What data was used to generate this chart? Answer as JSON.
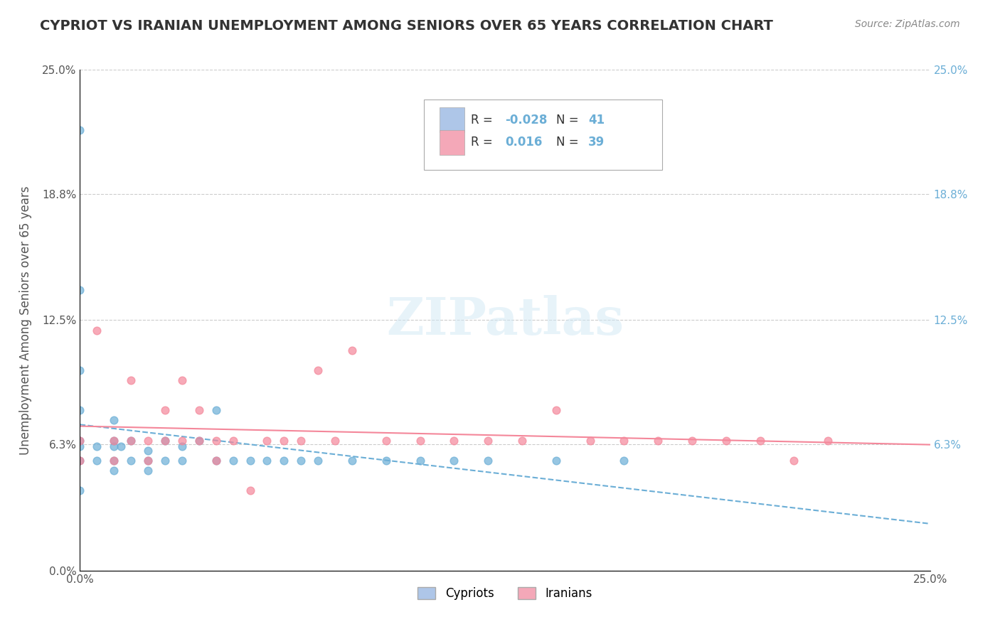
{
  "title": "CYPRIOT VS IRANIAN UNEMPLOYMENT AMONG SENIORS OVER 65 YEARS CORRELATION CHART",
  "source": "Source: ZipAtlas.com",
  "xlabel": "",
  "ylabel": "Unemployment Among Seniors over 65 years",
  "watermark": "ZIPatlas",
  "xlim": [
    0.0,
    0.25
  ],
  "ylim": [
    0.0,
    0.25
  ],
  "xtick_labels": [
    "0.0%",
    "25.0%"
  ],
  "ytick_labels": [
    "0.0%",
    "6.3%",
    "12.5%",
    "18.8%",
    "25.0%"
  ],
  "ytick_values": [
    0.0,
    0.063,
    0.125,
    0.188,
    0.25
  ],
  "right_ytick_labels": [
    "25.0%",
    "18.8%",
    "12.5%",
    "6.3%"
  ],
  "right_ytick_values": [
    0.25,
    0.188,
    0.125,
    0.063
  ],
  "legend_color_cypriot": "#aec6e8",
  "legend_color_iranian": "#f4a8b8",
  "cypriot_color": "#6baed6",
  "iranian_color": "#f4879a",
  "cypriot_R": -0.028,
  "cypriot_N": 41,
  "iranian_R": 0.016,
  "iranian_N": 39,
  "background_color": "#ffffff",
  "grid_color": "#cccccc",
  "title_color": "#333333",
  "axis_label_color": "#555555",
  "right_axis_color": "#6baed6",
  "cypriot_scatter_x": [
    0.0,
    0.0,
    0.0,
    0.0,
    0.0,
    0.0,
    0.0,
    0.0,
    0.005,
    0.005,
    0.01,
    0.01,
    0.01,
    0.01,
    0.01,
    0.012,
    0.015,
    0.015,
    0.02,
    0.02,
    0.02,
    0.025,
    0.025,
    0.03,
    0.03,
    0.035,
    0.04,
    0.04,
    0.045,
    0.05,
    0.055,
    0.06,
    0.065,
    0.07,
    0.08,
    0.09,
    0.1,
    0.11,
    0.12,
    0.14,
    0.16
  ],
  "cypriot_scatter_y": [
    0.22,
    0.14,
    0.1,
    0.08,
    0.065,
    0.062,
    0.055,
    0.04,
    0.062,
    0.055,
    0.075,
    0.065,
    0.062,
    0.055,
    0.05,
    0.062,
    0.065,
    0.055,
    0.06,
    0.055,
    0.05,
    0.065,
    0.055,
    0.062,
    0.055,
    0.065,
    0.08,
    0.055,
    0.055,
    0.055,
    0.055,
    0.055,
    0.055,
    0.055,
    0.055,
    0.055,
    0.055,
    0.055,
    0.055,
    0.055,
    0.055
  ],
  "iranian_scatter_x": [
    0.0,
    0.0,
    0.005,
    0.01,
    0.01,
    0.015,
    0.015,
    0.02,
    0.02,
    0.025,
    0.025,
    0.03,
    0.03,
    0.035,
    0.035,
    0.04,
    0.04,
    0.045,
    0.05,
    0.055,
    0.06,
    0.065,
    0.07,
    0.075,
    0.08,
    0.09,
    0.1,
    0.11,
    0.12,
    0.13,
    0.14,
    0.15,
    0.16,
    0.17,
    0.18,
    0.19,
    0.2,
    0.21,
    0.22
  ],
  "iranian_scatter_y": [
    0.065,
    0.055,
    0.12,
    0.065,
    0.055,
    0.095,
    0.065,
    0.065,
    0.055,
    0.08,
    0.065,
    0.095,
    0.065,
    0.08,
    0.065,
    0.065,
    0.055,
    0.065,
    0.04,
    0.065,
    0.065,
    0.065,
    0.1,
    0.065,
    0.11,
    0.065,
    0.065,
    0.065,
    0.065,
    0.065,
    0.08,
    0.065,
    0.065,
    0.065,
    0.065,
    0.065,
    0.065,
    0.055,
    0.065
  ]
}
